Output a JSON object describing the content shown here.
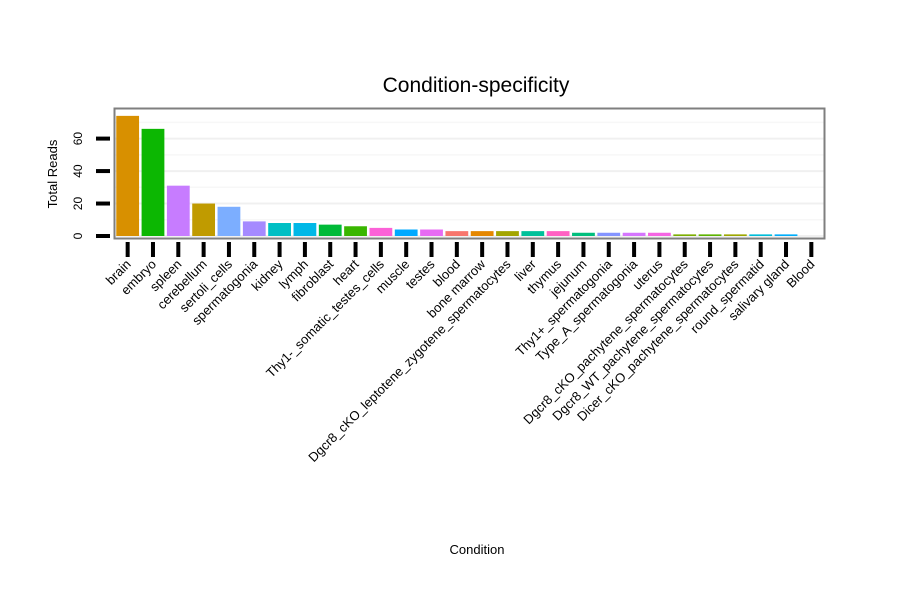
{
  "chart_data": {
    "type": "bar",
    "title": "Condition-specificity",
    "xlabel": "Condition",
    "ylabel": "Total Reads",
    "ylim": [
      0,
      77
    ],
    "yticks": [
      0,
      20,
      40,
      60
    ],
    "ytick_labels": [
      "0",
      "20",
      "40",
      "60"
    ],
    "grid": true,
    "categories": [
      "brain",
      "embryo",
      "spleen",
      "cerebellum",
      "sertoli_cells",
      "spermatogonia",
      "kidney",
      "lymph",
      "fibroblast",
      "heart",
      "Thy1-_somatic_testes_cells",
      "muscle",
      "testes",
      "blood",
      "bone marrow",
      "Dgcr8_cKO_leptotene_zygotene_spermatocytes",
      "liver",
      "thymus",
      "jejunum",
      "Thy1+_spermatogonia",
      "Type_A_spermatogonia",
      "uterus",
      "Dgcr8_cKO_pachytene_spermatocytes",
      "Dgcr8_WT_pachytene_spermatocytes",
      "Dicer_cKO_pachytene_spermatocytes",
      "round_spermatid",
      "salivary gland",
      "Blood"
    ],
    "values": [
      74,
      66,
      31,
      20,
      18,
      9,
      8,
      8,
      7,
      6,
      5,
      4,
      4,
      3,
      3,
      3,
      3,
      3,
      2,
      2,
      2,
      2,
      1,
      1,
      1,
      1,
      1,
      0
    ],
    "colors": [
      "#D89000",
      "#0CB702",
      "#C77CFF",
      "#C09B00",
      "#7CAEFF",
      "#A58AFF",
      "#00BFC4",
      "#00B8E7",
      "#00BA38",
      "#39B600",
      "#FB61D7",
      "#00A9FF",
      "#E76BF3",
      "#F8766D",
      "#E58700",
      "#A3A500",
      "#00C19A",
      "#FF61C3",
      "#00BF7D",
      "#8494FF",
      "#D575FE",
      "#F564E3",
      "#7CAE00",
      "#5EB300",
      "#9CA700",
      "#00BCD8",
      "#00ADFA",
      "#EF7F49"
    ]
  }
}
